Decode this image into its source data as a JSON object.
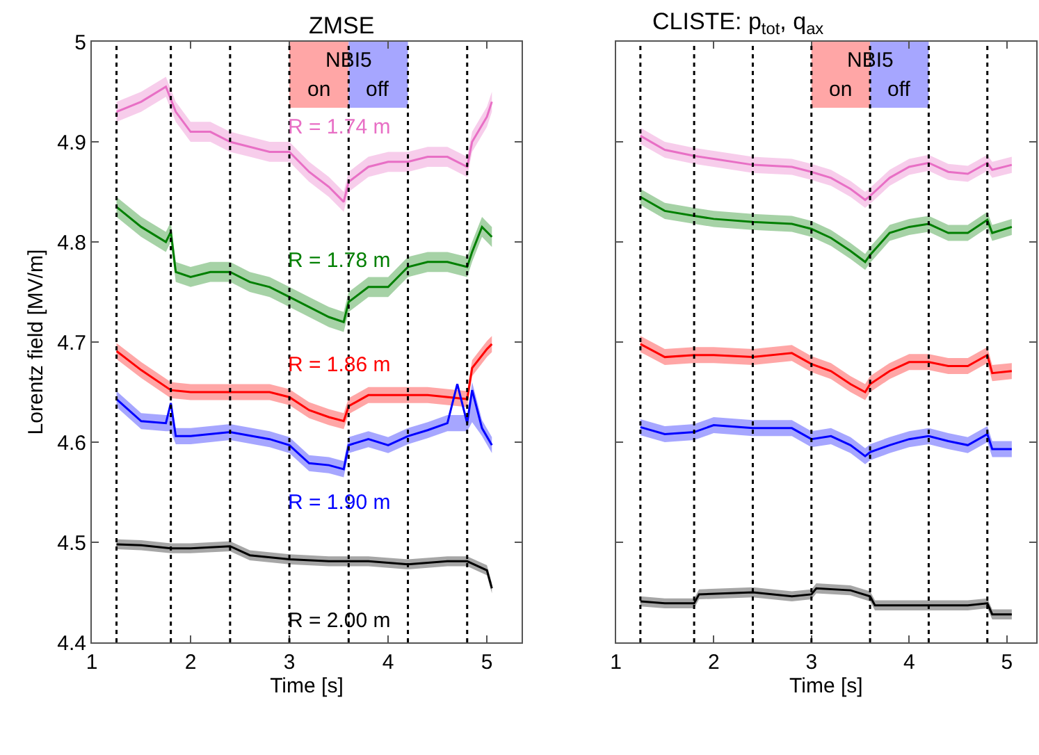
{
  "chart_data": [
    {
      "type": "line",
      "title": "ZMSE",
      "xlabel": "Time [s]",
      "ylabel": "Lorentz field [MV/m]",
      "xlim": [
        1,
        5.35
      ],
      "xticks": [
        1,
        2,
        3,
        4,
        5
      ],
      "ylim": [
        4.4,
        5
      ],
      "yticks": [
        4.4,
        4.5,
        4.6,
        4.7,
        4.8,
        4.9,
        5
      ],
      "grid": false,
      "legend": false,
      "marker": "none",
      "line_style": "solid",
      "annotations": [
        "NBI5"
      ],
      "bands": [
        {
          "axis": "x",
          "from": 3.0,
          "to": 3.6,
          "label": "on",
          "color": "#ffa6a6"
        },
        {
          "axis": "x",
          "from": 3.6,
          "to": 4.2,
          "label": "off",
          "color": "#a6a6ff"
        }
      ],
      "ref_lines": [
        {
          "axis": "x",
          "value": 1.25,
          "color": "#000000",
          "line_style": "dotted"
        },
        {
          "axis": "x",
          "value": 1.8,
          "color": "#000000",
          "line_style": "dotted"
        },
        {
          "axis": "x",
          "value": 2.4,
          "color": "#000000",
          "line_style": "dotted"
        },
        {
          "axis": "x",
          "value": 3.0,
          "color": "#000000",
          "line_style": "dotted"
        },
        {
          "axis": "x",
          "value": 3.6,
          "color": "#000000",
          "line_style": "dotted"
        },
        {
          "axis": "x",
          "value": 4.2,
          "color": "#000000",
          "line_style": "dotted"
        },
        {
          "axis": "x",
          "value": 4.8,
          "color": "#000000",
          "line_style": "dotted"
        }
      ],
      "series": [
        {
          "name": "R = 1.74 m",
          "color": "#e86fc5",
          "x": [
            1.25,
            1.5,
            1.75,
            1.85,
            2.0,
            2.2,
            2.4,
            2.6,
            2.8,
            3.0,
            3.2,
            3.4,
            3.55,
            3.6,
            3.8,
            4.0,
            4.2,
            4.4,
            4.6,
            4.8,
            4.85,
            5.0,
            5.05
          ],
          "values": [
            4.93,
            4.94,
            4.955,
            4.93,
            4.91,
            4.91,
            4.9,
            4.895,
            4.89,
            4.89,
            4.87,
            4.855,
            4.84,
            4.86,
            4.875,
            4.88,
            4.88,
            4.885,
            4.885,
            4.875,
            4.9,
            4.925,
            4.94
          ],
          "lower": [
            4.92,
            4.93,
            4.945,
            4.92,
            4.9,
            4.9,
            4.89,
            4.885,
            4.88,
            4.88,
            4.86,
            4.845,
            4.83,
            4.85,
            4.865,
            4.87,
            4.87,
            4.875,
            4.875,
            4.865,
            4.89,
            4.915,
            4.93
          ],
          "upper": [
            4.94,
            4.95,
            4.965,
            4.94,
            4.92,
            4.92,
            4.91,
            4.905,
            4.9,
            4.9,
            4.88,
            4.865,
            4.85,
            4.87,
            4.885,
            4.89,
            4.89,
            4.895,
            4.895,
            4.885,
            4.91,
            4.935,
            4.95
          ]
        },
        {
          "name": "R = 1.78 m",
          "color": "#007f00",
          "x": [
            1.25,
            1.5,
            1.75,
            1.8,
            1.85,
            2.0,
            2.2,
            2.4,
            2.6,
            2.8,
            3.0,
            3.2,
            3.4,
            3.55,
            3.6,
            3.8,
            4.0,
            4.2,
            4.4,
            4.6,
            4.8,
            4.85,
            4.95,
            5.05
          ],
          "values": [
            4.835,
            4.815,
            4.8,
            4.81,
            4.77,
            4.765,
            4.77,
            4.77,
            4.76,
            4.755,
            4.745,
            4.735,
            4.725,
            4.72,
            4.74,
            4.755,
            4.755,
            4.775,
            4.78,
            4.78,
            4.775,
            4.79,
            4.815,
            4.805
          ],
          "lower": [
            4.825,
            4.805,
            4.79,
            4.8,
            4.76,
            4.755,
            4.76,
            4.76,
            4.75,
            4.745,
            4.735,
            4.725,
            4.715,
            4.71,
            4.73,
            4.745,
            4.745,
            4.765,
            4.77,
            4.77,
            4.765,
            4.78,
            4.805,
            4.795
          ],
          "upper": [
            4.845,
            4.825,
            4.81,
            4.82,
            4.78,
            4.775,
            4.78,
            4.78,
            4.77,
            4.765,
            4.755,
            4.745,
            4.735,
            4.73,
            4.75,
            4.765,
            4.765,
            4.785,
            4.79,
            4.79,
            4.785,
            4.8,
            4.825,
            4.815
          ]
        },
        {
          "name": "R = 1.86 m",
          "color": "#ff0000",
          "x": [
            1.25,
            1.5,
            1.8,
            2.0,
            2.4,
            2.8,
            3.0,
            3.2,
            3.4,
            3.55,
            3.6,
            3.8,
            4.0,
            4.4,
            4.8,
            4.85,
            5.0,
            5.05
          ],
          "values": [
            4.691,
            4.672,
            4.652,
            4.65,
            4.65,
            4.65,
            4.645,
            4.632,
            4.625,
            4.621,
            4.636,
            4.647,
            4.647,
            4.647,
            4.643,
            4.674,
            4.693,
            4.698
          ],
          "lower": [
            4.683,
            4.664,
            4.644,
            4.642,
            4.642,
            4.642,
            4.637,
            4.624,
            4.617,
            4.613,
            4.628,
            4.639,
            4.639,
            4.639,
            4.635,
            4.666,
            4.685,
            4.69
          ],
          "upper": [
            4.699,
            4.68,
            4.66,
            4.658,
            4.658,
            4.658,
            4.653,
            4.64,
            4.633,
            4.629,
            4.644,
            4.655,
            4.655,
            4.655,
            4.651,
            4.682,
            4.701,
            4.706
          ]
        },
        {
          "name": "R = 1.90 m",
          "color": "#0000ff",
          "x": [
            1.25,
            1.5,
            1.75,
            1.8,
            1.85,
            2.0,
            2.4,
            2.8,
            3.0,
            3.2,
            3.4,
            3.55,
            3.6,
            3.8,
            4.0,
            4.2,
            4.4,
            4.6,
            4.7,
            4.8,
            4.85,
            4.95,
            5.05
          ],
          "values": [
            4.643,
            4.621,
            4.619,
            4.639,
            4.606,
            4.606,
            4.61,
            4.603,
            4.597,
            4.579,
            4.577,
            4.573,
            4.597,
            4.603,
            4.597,
            4.606,
            4.612,
            4.619,
            4.658,
            4.619,
            4.652,
            4.614,
            4.597
          ],
          "lower": [
            4.635,
            4.613,
            4.611,
            4.611,
            4.598,
            4.598,
            4.602,
            4.595,
            4.589,
            4.571,
            4.569,
            4.565,
            4.589,
            4.595,
            4.589,
            4.598,
            4.604,
            4.611,
            4.611,
            4.611,
            4.62,
            4.606,
            4.589
          ],
          "upper": [
            4.651,
            4.629,
            4.627,
            4.627,
            4.614,
            4.614,
            4.618,
            4.611,
            4.605,
            4.587,
            4.585,
            4.581,
            4.605,
            4.611,
            4.605,
            4.614,
            4.62,
            4.627,
            4.627,
            4.627,
            4.66,
            4.622,
            4.605
          ]
        },
        {
          "name": "R = 2.00 m",
          "color": "#000000",
          "x": [
            1.25,
            1.5,
            1.8,
            2.0,
            2.4,
            2.6,
            3.0,
            3.4,
            3.8,
            4.2,
            4.6,
            4.8,
            5.0,
            5.05
          ],
          "values": [
            4.498,
            4.497,
            4.494,
            4.494,
            4.496,
            4.487,
            4.483,
            4.481,
            4.481,
            4.478,
            4.481,
            4.481,
            4.472,
            4.454
          ],
          "lower": [
            4.493,
            4.492,
            4.489,
            4.489,
            4.491,
            4.482,
            4.478,
            4.476,
            4.476,
            4.473,
            4.476,
            4.476,
            4.467,
            4.449
          ],
          "upper": [
            4.503,
            4.502,
            4.499,
            4.499,
            4.501,
            4.492,
            4.488,
            4.486,
            4.486,
            4.483,
            4.486,
            4.486,
            4.477,
            4.459
          ]
        }
      ]
    },
    {
      "type": "line",
      "title": "CLISTE: p$_{tot}$, q$_{ax}$",
      "xlabel": "Time [s]",
      "xlim": [
        1,
        5.3
      ],
      "xticks": [
        1,
        2,
        3,
        4,
        5
      ],
      "ylim": [
        4.4,
        5
      ],
      "yticks": [
        4.4,
        4.5,
        4.6,
        4.7,
        4.8,
        4.9,
        5
      ],
      "tick_labels": "x",
      "grid": false,
      "legend": false,
      "marker": "none",
      "line_style": "solid",
      "annotations": [
        "NBI5"
      ],
      "bands": [
        {
          "axis": "x",
          "from": 3.0,
          "to": 3.6,
          "label": "on",
          "color": "#ffa6a6"
        },
        {
          "axis": "x",
          "from": 3.6,
          "to": 4.2,
          "label": "off",
          "color": "#a6a6ff"
        }
      ],
      "ref_lines": [
        {
          "axis": "x",
          "value": 1.25,
          "color": "#000000",
          "line_style": "dotted"
        },
        {
          "axis": "x",
          "value": 1.8,
          "color": "#000000",
          "line_style": "dotted"
        },
        {
          "axis": "x",
          "value": 2.4,
          "color": "#000000",
          "line_style": "dotted"
        },
        {
          "axis": "x",
          "value": 3.0,
          "color": "#000000",
          "line_style": "dotted"
        },
        {
          "axis": "x",
          "value": 3.6,
          "color": "#000000",
          "line_style": "dotted"
        },
        {
          "axis": "x",
          "value": 4.2,
          "color": "#000000",
          "line_style": "dotted"
        },
        {
          "axis": "x",
          "value": 4.8,
          "color": "#000000",
          "line_style": "dotted"
        }
      ],
      "series": [
        {
          "color": "#e86fc5",
          "x": [
            1.25,
            1.5,
            1.8,
            2.0,
            2.4,
            2.8,
            3.0,
            3.2,
            3.4,
            3.55,
            3.6,
            3.8,
            4.0,
            4.2,
            4.4,
            4.6,
            4.8,
            4.85,
            5.05
          ],
          "values": [
            4.906,
            4.892,
            4.886,
            4.883,
            4.877,
            4.875,
            4.87,
            4.864,
            4.853,
            4.842,
            4.846,
            4.864,
            4.875,
            4.879,
            4.87,
            4.868,
            4.879,
            4.872,
            4.877
          ],
          "lower": [
            4.898,
            4.884,
            4.878,
            4.875,
            4.869,
            4.867,
            4.862,
            4.856,
            4.845,
            4.834,
            4.838,
            4.856,
            4.867,
            4.871,
            4.862,
            4.86,
            4.871,
            4.864,
            4.869
          ],
          "upper": [
            4.914,
            4.9,
            4.894,
            4.891,
            4.885,
            4.883,
            4.878,
            4.872,
            4.861,
            4.85,
            4.854,
            4.872,
            4.883,
            4.887,
            4.878,
            4.876,
            4.887,
            4.88,
            4.885
          ]
        },
        {
          "color": "#007f00",
          "x": [
            1.25,
            1.5,
            1.8,
            2.0,
            2.4,
            2.8,
            3.0,
            3.2,
            3.4,
            3.55,
            3.6,
            3.8,
            4.0,
            4.2,
            4.4,
            4.6,
            4.8,
            4.85,
            5.05
          ],
          "values": [
            4.845,
            4.831,
            4.826,
            4.823,
            4.82,
            4.818,
            4.813,
            4.804,
            4.791,
            4.78,
            4.787,
            4.809,
            4.815,
            4.818,
            4.809,
            4.809,
            4.822,
            4.809,
            4.815
          ],
          "lower": [
            4.837,
            4.823,
            4.818,
            4.815,
            4.812,
            4.81,
            4.805,
            4.796,
            4.783,
            4.772,
            4.779,
            4.801,
            4.807,
            4.81,
            4.801,
            4.801,
            4.814,
            4.801,
            4.807
          ],
          "upper": [
            4.853,
            4.839,
            4.834,
            4.831,
            4.828,
            4.826,
            4.821,
            4.812,
            4.799,
            4.788,
            4.795,
            4.817,
            4.823,
            4.826,
            4.817,
            4.817,
            4.83,
            4.817,
            4.823
          ]
        },
        {
          "color": "#ff0000",
          "x": [
            1.25,
            1.5,
            1.8,
            2.0,
            2.4,
            2.8,
            3.0,
            3.2,
            3.4,
            3.55,
            3.6,
            3.8,
            4.0,
            4.2,
            4.4,
            4.6,
            4.8,
            4.85,
            5.05
          ],
          "values": [
            4.698,
            4.685,
            4.687,
            4.687,
            4.685,
            4.689,
            4.678,
            4.671,
            4.658,
            4.65,
            4.658,
            4.671,
            4.68,
            4.68,
            4.676,
            4.676,
            4.687,
            4.669,
            4.671
          ],
          "lower": [
            4.69,
            4.677,
            4.679,
            4.679,
            4.677,
            4.681,
            4.67,
            4.663,
            4.65,
            4.642,
            4.65,
            4.663,
            4.672,
            4.672,
            4.668,
            4.668,
            4.679,
            4.661,
            4.663
          ],
          "upper": [
            4.706,
            4.693,
            4.695,
            4.695,
            4.693,
            4.697,
            4.686,
            4.679,
            4.666,
            4.658,
            4.666,
            4.679,
            4.688,
            4.688,
            4.684,
            4.684,
            4.695,
            4.677,
            4.679
          ]
        },
        {
          "color": "#0000ff",
          "x": [
            1.25,
            1.5,
            1.8,
            2.0,
            2.4,
            2.8,
            3.0,
            3.2,
            3.4,
            3.55,
            3.6,
            3.8,
            4.0,
            4.2,
            4.4,
            4.6,
            4.8,
            4.85,
            5.05
          ],
          "values": [
            4.615,
            4.608,
            4.61,
            4.617,
            4.614,
            4.614,
            4.603,
            4.606,
            4.597,
            4.586,
            4.59,
            4.597,
            4.603,
            4.606,
            4.601,
            4.597,
            4.608,
            4.593,
            4.593
          ],
          "lower": [
            4.607,
            4.6,
            4.602,
            4.609,
            4.606,
            4.606,
            4.595,
            4.598,
            4.589,
            4.578,
            4.582,
            4.589,
            4.595,
            4.598,
            4.593,
            4.589,
            4.6,
            4.585,
            4.585
          ],
          "upper": [
            4.623,
            4.616,
            4.618,
            4.625,
            4.622,
            4.622,
            4.611,
            4.614,
            4.605,
            4.594,
            4.598,
            4.605,
            4.611,
            4.614,
            4.609,
            4.605,
            4.616,
            4.601,
            4.601
          ]
        },
        {
          "color": "#000000",
          "x": [
            1.25,
            1.5,
            1.8,
            1.85,
            2.4,
            2.8,
            3.0,
            3.05,
            3.4,
            3.6,
            3.65,
            4.2,
            4.6,
            4.8,
            4.85,
            5.05
          ],
          "values": [
            4.441,
            4.439,
            4.439,
            4.448,
            4.45,
            4.446,
            4.448,
            4.454,
            4.452,
            4.446,
            4.437,
            4.437,
            4.437,
            4.439,
            4.428,
            4.428
          ],
          "lower": [
            4.436,
            4.434,
            4.434,
            4.443,
            4.445,
            4.441,
            4.443,
            4.449,
            4.447,
            4.441,
            4.432,
            4.432,
            4.432,
            4.434,
            4.423,
            4.423
          ],
          "upper": [
            4.446,
            4.444,
            4.444,
            4.453,
            4.455,
            4.451,
            4.453,
            4.459,
            4.457,
            4.451,
            4.442,
            4.442,
            4.442,
            4.444,
            4.433,
            4.433
          ]
        }
      ]
    }
  ]
}
